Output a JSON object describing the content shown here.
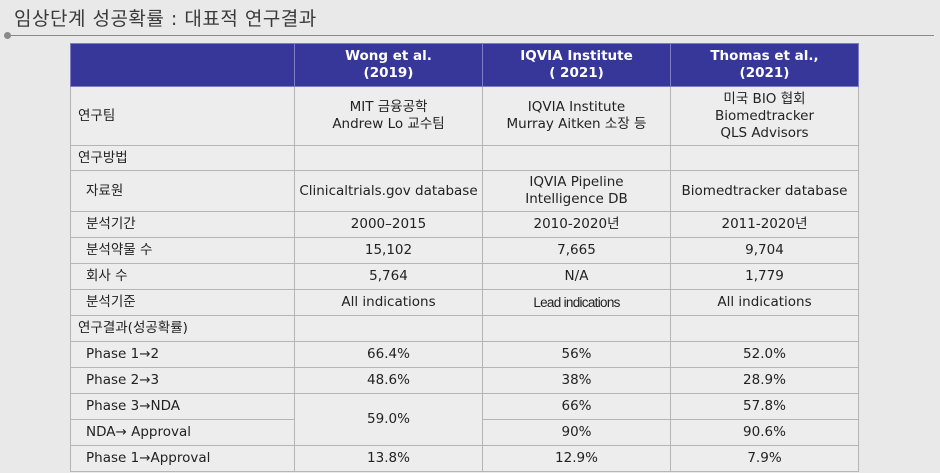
{
  "title": "임상단계 성공확률 : 대표적 연구결과",
  "header": {
    "cols": [
      {
        "line1": "Wong et al.",
        "line2": "(2019)"
      },
      {
        "line1": "IQVIA Institute",
        "line2": "( 2021)"
      },
      {
        "line1": "Thomas et al.,",
        "line2": "(2021)"
      }
    ]
  },
  "rows": {
    "team": {
      "label": "연구팀",
      "c1": [
        "MIT 금융공학",
        "Andrew Lo 교수팀"
      ],
      "c2": [
        "IQVIA Institute",
        "Murray Aitken 소장 등"
      ],
      "c3": [
        "미국 BIO 협회",
        "Biomedtracker",
        "QLS Advisors"
      ]
    },
    "method": {
      "label": "연구방법"
    },
    "source": {
      "label": "자료원",
      "c1": "Clinicaltrials.gov database",
      "c2": [
        "IQVIA Pipeline",
        "Intelligence DB"
      ],
      "c3": "Biomedtracker database"
    },
    "period": {
      "label": "분석기간",
      "c1": "2000–2015",
      "c2": "2010-2020년",
      "c3": "2011-2020년"
    },
    "drugs": {
      "label": "분석약물 수",
      "c1": "15,102",
      "c2": "7,665",
      "c3": "9,704"
    },
    "companies": {
      "label": "회사 수",
      "c1": "5,764",
      "c2": "N/A",
      "c3": "1,779"
    },
    "criteria": {
      "label": "분석기준",
      "c1": "All indications",
      "c2": "Lead indications",
      "c3": "All indications"
    },
    "results": {
      "label": "연구결과(성공확률)"
    },
    "p12": {
      "label": "Phase 1→2",
      "c1": "66.4%",
      "c2": "56%",
      "c3": "52.0%"
    },
    "p23": {
      "label": "Phase 2→3",
      "c1": "48.6%",
      "c2": "38%",
      "c3": "28.9%"
    },
    "p3nda": {
      "label": "Phase 3→NDA",
      "c1": "59.0%",
      "c2": "66%",
      "c3": "57.8%"
    },
    "ndaapp": {
      "label": "NDA→ Approval",
      "c2": "90%",
      "c3": "90.6%"
    },
    "p1app": {
      "label": "Phase 1→Approval",
      "c1": "13.8%",
      "c2": "12.9%",
      "c3": "7.9%"
    }
  }
}
